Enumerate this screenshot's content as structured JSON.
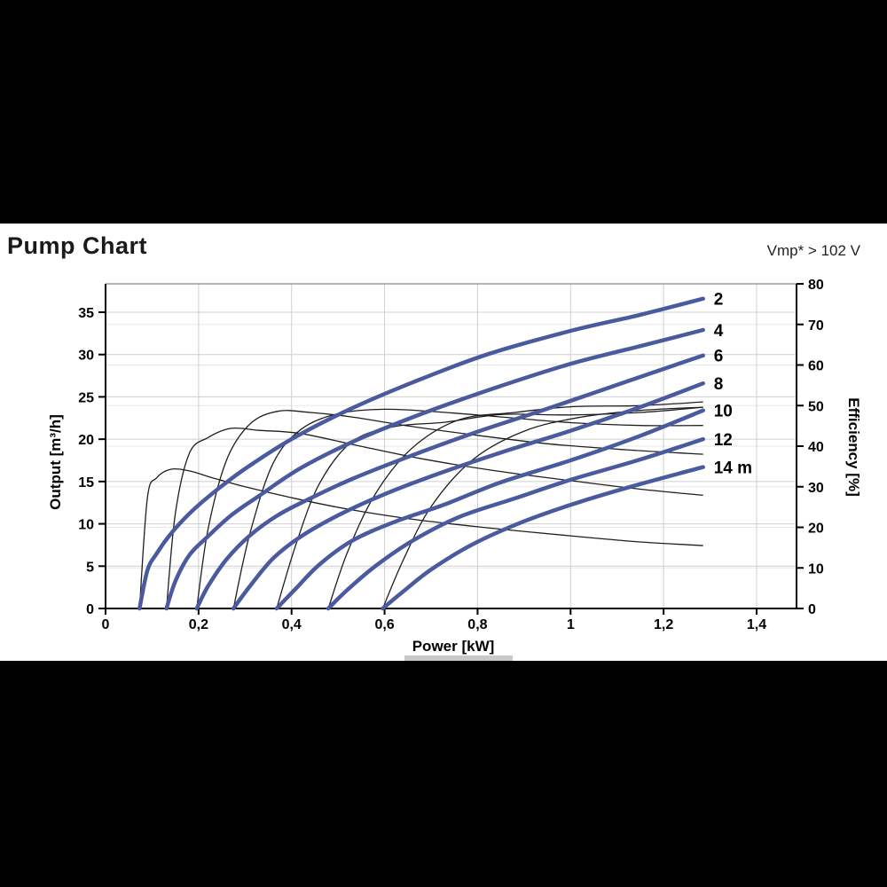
{
  "header": {
    "title": "Pump Chart",
    "vmp_note": "Vmp* > 102 V"
  },
  "chart_data": {
    "type": "line",
    "title": "Pump Chart",
    "xlabel": "Power [kW]",
    "ylabel_left": "Output [m³/h]",
    "ylabel_right": "Efficiency [%]",
    "xlim": [
      0,
      1.486
    ],
    "ylim_left": [
      0,
      38.3
    ],
    "ylim_right": [
      0,
      80
    ],
    "grid": true,
    "legend_position": "curve-end-labels",
    "x_tick_values": [
      0,
      0.2,
      0.4,
      0.6,
      0.8,
      1.0,
      1.2,
      1.4
    ],
    "x_tick_labels": [
      "0",
      "0,2",
      "0,4",
      "0,6",
      "0,8",
      "1",
      "1,2",
      "1,4"
    ],
    "y_tick_values_left": [
      0,
      5,
      10,
      15,
      20,
      25,
      30,
      35
    ],
    "y_tick_labels_left": [
      "0",
      "5",
      "10",
      "15",
      "20",
      "25",
      "30",
      "35"
    ],
    "y_tick_values_right": [
      0,
      10,
      20,
      30,
      40,
      50,
      60,
      70,
      80
    ],
    "y_tick_labels_right": [
      "0",
      "10",
      "20",
      "30",
      "40",
      "50",
      "60",
      "70",
      "80"
    ],
    "colors": {
      "head_curve": "#4a5a9f",
      "efficiency_curve": "#1f1f1f",
      "grid": "#cfcfcf",
      "grid_faint": "#e8e8e8",
      "axis": "#000000",
      "frame_top": "#888888"
    },
    "head_curves": [
      {
        "label": "2",
        "head_m": 2,
        "points": [
          [
            0.073,
            0
          ],
          [
            0.09,
            4.5
          ],
          [
            0.11,
            6.5
          ],
          [
            0.14,
            8.8
          ],
          [
            0.18,
            11.2
          ],
          [
            0.23,
            13.6
          ],
          [
            0.3,
            16.5
          ],
          [
            0.4,
            20.0
          ],
          [
            0.52,
            23.4
          ],
          [
            0.66,
            26.7
          ],
          [
            0.82,
            30.0
          ],
          [
            1.0,
            32.8
          ],
          [
            1.15,
            34.7
          ],
          [
            1.285,
            36.6
          ]
        ]
      },
      {
        "label": "4",
        "head_m": 4,
        "points": [
          [
            0.131,
            0
          ],
          [
            0.15,
            3.2
          ],
          [
            0.18,
            6.3
          ],
          [
            0.22,
            8.5
          ],
          [
            0.27,
            11.0
          ],
          [
            0.33,
            13.3
          ],
          [
            0.42,
            16.6
          ],
          [
            0.54,
            19.9
          ],
          [
            0.68,
            23.0
          ],
          [
            0.84,
            26.1
          ],
          [
            1.0,
            28.9
          ],
          [
            1.15,
            31.0
          ],
          [
            1.285,
            32.9
          ]
        ]
      },
      {
        "label": "6",
        "head_m": 6,
        "points": [
          [
            0.196,
            0
          ],
          [
            0.22,
            2.6
          ],
          [
            0.26,
            5.8
          ],
          [
            0.31,
            8.6
          ],
          [
            0.37,
            11.0
          ],
          [
            0.44,
            13.0
          ],
          [
            0.53,
            15.3
          ],
          [
            0.65,
            17.9
          ],
          [
            0.79,
            20.7
          ],
          [
            0.95,
            23.6
          ],
          [
            1.12,
            26.8
          ],
          [
            1.285,
            29.9
          ]
        ]
      },
      {
        "label": "8",
        "head_m": 8,
        "points": [
          [
            0.275,
            0
          ],
          [
            0.31,
            2.6
          ],
          [
            0.36,
            5.9
          ],
          [
            0.42,
            8.5
          ],
          [
            0.5,
            11.0
          ],
          [
            0.6,
            13.5
          ],
          [
            0.72,
            16.0
          ],
          [
            0.86,
            18.6
          ],
          [
            1.0,
            21.0
          ],
          [
            1.15,
            23.8
          ],
          [
            1.285,
            26.6
          ]
        ]
      },
      {
        "label": "10",
        "head_m": 10,
        "points": [
          [
            0.368,
            0
          ],
          [
            0.41,
            2.4
          ],
          [
            0.46,
            5.2
          ],
          [
            0.53,
            8.0
          ],
          [
            0.62,
            10.2
          ],
          [
            0.73,
            12.3
          ],
          [
            0.85,
            14.9
          ],
          [
            1.0,
            17.5
          ],
          [
            1.15,
            20.4
          ],
          [
            1.285,
            23.4
          ]
        ]
      },
      {
        "label": "12",
        "head_m": 12,
        "points": [
          [
            0.479,
            0
          ],
          [
            0.52,
            2.2
          ],
          [
            0.58,
            5.0
          ],
          [
            0.66,
            8.0
          ],
          [
            0.76,
            10.8
          ],
          [
            0.88,
            13.0
          ],
          [
            1.0,
            15.2
          ],
          [
            1.15,
            17.6
          ],
          [
            1.285,
            20.0
          ]
        ]
      },
      {
        "label": "14 m",
        "head_m": 14,
        "points": [
          [
            0.596,
            0
          ],
          [
            0.64,
            2.0
          ],
          [
            0.7,
            4.6
          ],
          [
            0.79,
            7.6
          ],
          [
            0.9,
            10.3
          ],
          [
            1.02,
            12.6
          ],
          [
            1.15,
            14.7
          ],
          [
            1.285,
            16.7
          ]
        ]
      }
    ],
    "efficiency_curves": [
      {
        "head_m": 2,
        "points": [
          [
            0.073,
            0
          ],
          [
            0.09,
            27.3
          ],
          [
            0.11,
            32.2
          ],
          [
            0.14,
            34.3
          ],
          [
            0.18,
            33.9
          ],
          [
            0.23,
            32.2
          ],
          [
            0.3,
            30.0
          ],
          [
            0.4,
            27.3
          ],
          [
            0.52,
            24.5
          ],
          [
            0.66,
            22.0
          ],
          [
            0.82,
            19.9
          ],
          [
            1.0,
            17.9
          ],
          [
            1.15,
            16.4
          ],
          [
            1.285,
            15.5
          ]
        ]
      },
      {
        "head_m": 4,
        "points": [
          [
            0.131,
            0
          ],
          [
            0.15,
            23.3
          ],
          [
            0.18,
            38.2
          ],
          [
            0.22,
            42.1
          ],
          [
            0.27,
            44.4
          ],
          [
            0.33,
            43.9
          ],
          [
            0.42,
            43.1
          ],
          [
            0.54,
            40.2
          ],
          [
            0.68,
            36.9
          ],
          [
            0.84,
            33.9
          ],
          [
            1.0,
            31.5
          ],
          [
            1.15,
            29.4
          ],
          [
            1.285,
            27.9
          ]
        ]
      },
      {
        "head_m": 6,
        "points": [
          [
            0.196,
            0
          ],
          [
            0.22,
            19.3
          ],
          [
            0.26,
            36.5
          ],
          [
            0.31,
            45.4
          ],
          [
            0.37,
            48.6
          ],
          [
            0.44,
            48.3
          ],
          [
            0.53,
            47.2
          ],
          [
            0.65,
            45.0
          ],
          [
            0.79,
            42.8
          ],
          [
            0.95,
            40.6
          ],
          [
            1.12,
            39.1
          ],
          [
            1.285,
            38.0
          ]
        ]
      },
      {
        "head_m": 8,
        "points": [
          [
            0.275,
            0
          ],
          [
            0.31,
            18.3
          ],
          [
            0.36,
            35.7
          ],
          [
            0.42,
            44.1
          ],
          [
            0.5,
            48.0
          ],
          [
            0.6,
            49.1
          ],
          [
            0.72,
            48.4
          ],
          [
            0.86,
            47.1
          ],
          [
            1.0,
            45.8
          ],
          [
            1.15,
            45.1
          ],
          [
            1.285,
            45.1
          ]
        ]
      },
      {
        "head_m": 10,
        "points": [
          [
            0.368,
            0
          ],
          [
            0.41,
            16.0
          ],
          [
            0.46,
            30.8
          ],
          [
            0.53,
            41.1
          ],
          [
            0.62,
            44.8
          ],
          [
            0.73,
            45.9
          ],
          [
            0.85,
            47.8
          ],
          [
            1.0,
            47.7
          ],
          [
            1.15,
            48.3
          ],
          [
            1.285,
            49.6
          ]
        ]
      },
      {
        "head_m": 12,
        "points": [
          [
            0.479,
            0
          ],
          [
            0.52,
            13.8
          ],
          [
            0.58,
            28.2
          ],
          [
            0.66,
            39.6
          ],
          [
            0.76,
            46.5
          ],
          [
            0.88,
            48.3
          ],
          [
            1.0,
            49.7
          ],
          [
            1.15,
            50.0
          ],
          [
            1.285,
            50.9
          ]
        ]
      },
      {
        "head_m": 14,
        "points": [
          [
            0.596,
            0
          ],
          [
            0.64,
            11.9
          ],
          [
            0.7,
            25.1
          ],
          [
            0.79,
            36.7
          ],
          [
            0.9,
            43.7
          ],
          [
            1.02,
            47.1
          ],
          [
            1.15,
            48.8
          ],
          [
            1.285,
            49.6
          ]
        ]
      }
    ]
  }
}
